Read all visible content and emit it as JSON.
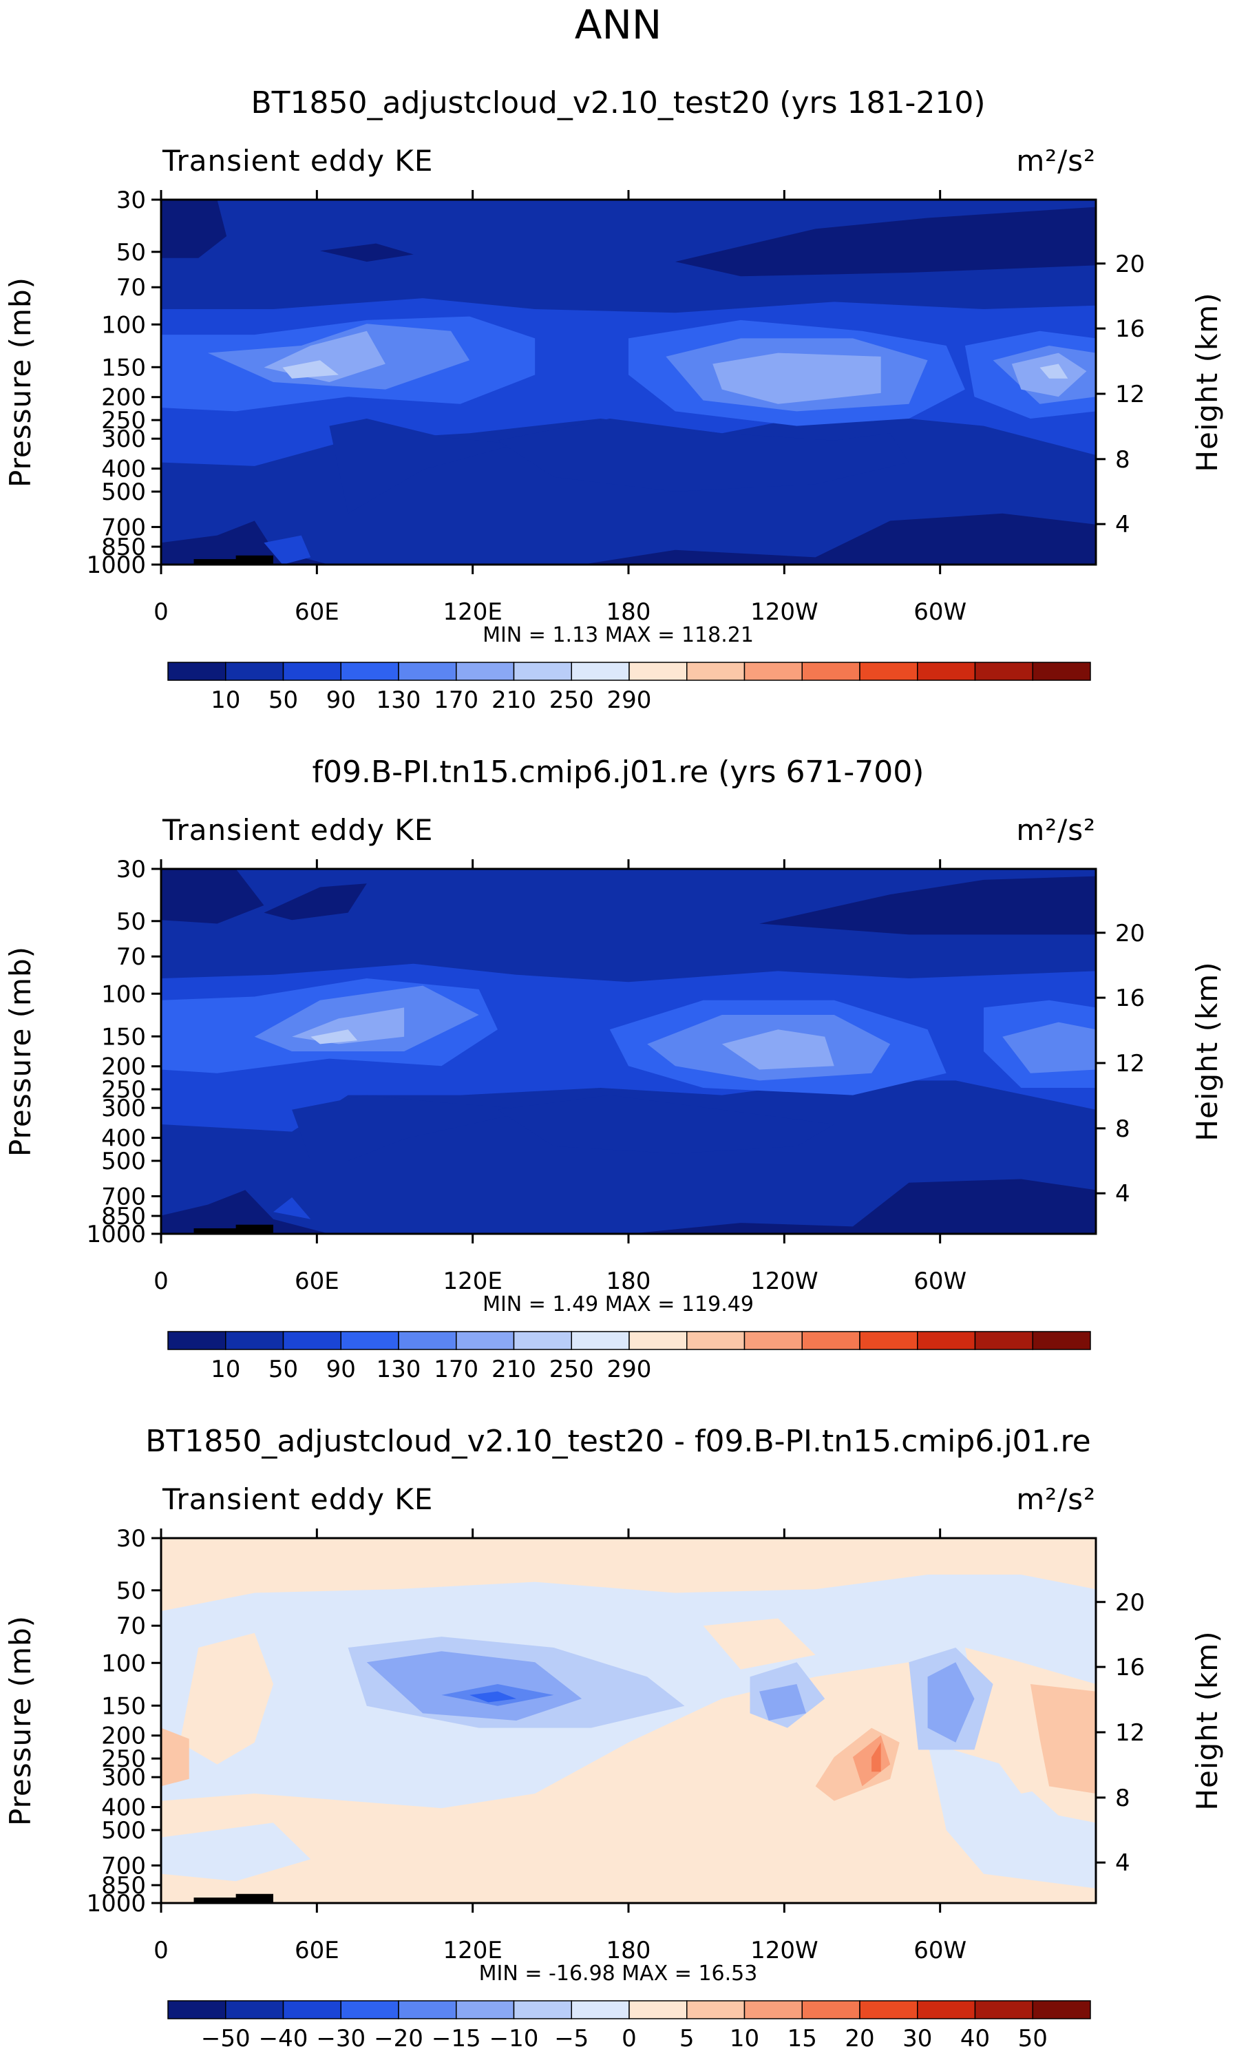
{
  "figure_title": "ANN",
  "chart_data": [
    {
      "type": "heatmap",
      "title": "BT1850_adjustcloud_v2.10_test20 (yrs 181-210)",
      "left_label": "Transient eddy KE",
      "units_label": "m²/s²",
      "ylabel_left": "Pressure (mb)",
      "ylabel_right": "Height (km)",
      "xticks": [
        "0",
        "60E",
        "120E",
        "180",
        "120W",
        "60W"
      ],
      "yticks_pressure": [
        "30",
        "50",
        "70",
        "100",
        "150",
        "200",
        "250",
        "300",
        "400",
        "500",
        "700",
        "850",
        "1000"
      ],
      "yticks_height": [
        "20",
        "16",
        "12",
        "8",
        "4"
      ],
      "stats": {
        "min_label": "MIN =",
        "min": "1.13",
        "max_label": "MAX =",
        "max": "118.21"
      },
      "colorbar_labels": [
        "10",
        "50",
        "90",
        "130",
        "170",
        "210",
        "250",
        "290"
      ],
      "colorbar_colors": [
        "#0a1a7a",
        "#0f2fa8",
        "#1a45d6",
        "#2f62f0",
        "#5b85f2",
        "#8aa8f5",
        "#b9cdf8",
        "#dce8fb",
        "#fde7d3",
        "#fbc7a8",
        "#f9a07c",
        "#f47850",
        "#ea4b22",
        "#cf2a10",
        "#a51a0c",
        "#7a0d06"
      ],
      "contours": "ta_panel"
    },
    {
      "type": "heatmap",
      "title": "f09.B-PI.tn15.cmip6.j01.re (yrs 671-700)",
      "left_label": "Transient eddy KE",
      "units_label": "m²/s²",
      "ylabel_left": "Pressure (mb)",
      "ylabel_right": "Height (km)",
      "xticks": [
        "0",
        "60E",
        "120E",
        "180",
        "120W",
        "60W"
      ],
      "yticks_pressure": [
        "30",
        "50",
        "70",
        "100",
        "150",
        "200",
        "250",
        "300",
        "400",
        "500",
        "700",
        "850",
        "1000"
      ],
      "yticks_height": [
        "20",
        "16",
        "12",
        "8",
        "4"
      ],
      "stats": {
        "min_label": "MIN =",
        "min": "1.49",
        "max_label": "MAX =",
        "max": "119.49"
      },
      "colorbar_labels": [
        "10",
        "50",
        "90",
        "130",
        "170",
        "210",
        "250",
        "290"
      ],
      "colorbar_colors": [
        "#0a1a7a",
        "#0f2fa8",
        "#1a45d6",
        "#2f62f0",
        "#5b85f2",
        "#8aa8f5",
        "#b9cdf8",
        "#dce8fb",
        "#fde7d3",
        "#fbc7a8",
        "#f9a07c",
        "#f47850",
        "#ea4b22",
        "#cf2a10",
        "#a51a0c",
        "#7a0d06"
      ],
      "contours": "tb_panel"
    },
    {
      "type": "heatmap",
      "title": "BT1850_adjustcloud_v2.10_test20 - f09.B-PI.tn15.cmip6.j01.re",
      "left_label": "Transient eddy KE",
      "units_label": "m²/s²",
      "ylabel_left": "Pressure (mb)",
      "ylabel_right": "Height (km)",
      "xticks": [
        "0",
        "60E",
        "120E",
        "180",
        "120W",
        "60W"
      ],
      "yticks_pressure": [
        "30",
        "50",
        "70",
        "100",
        "150",
        "200",
        "250",
        "300",
        "400",
        "500",
        "700",
        "850",
        "1000"
      ],
      "yticks_height": [
        "20",
        "16",
        "12",
        "8",
        "4"
      ],
      "stats": {
        "min_label": "MIN =",
        "min": "-16.98",
        "max_label": "MAX =",
        "max": "16.53"
      },
      "colorbar_labels": [
        "−50",
        "−40",
        "−30",
        "−20",
        "−15",
        "−10",
        "−5",
        "0",
        "5",
        "10",
        "15",
        "20",
        "30",
        "40",
        "50"
      ],
      "colorbar_colors": [
        "#0a1a7a",
        "#0f2fa8",
        "#1a45d6",
        "#2f62f0",
        "#5b85f2",
        "#8aa8f5",
        "#b9cdf8",
        "#dce8fb",
        "#fde7d3",
        "#fbc7a8",
        "#f9a07c",
        "#f47850",
        "#ea4b22",
        "#cf2a10",
        "#a51a0c",
        "#7a0d06"
      ],
      "contours": "diff_panel"
    }
  ]
}
